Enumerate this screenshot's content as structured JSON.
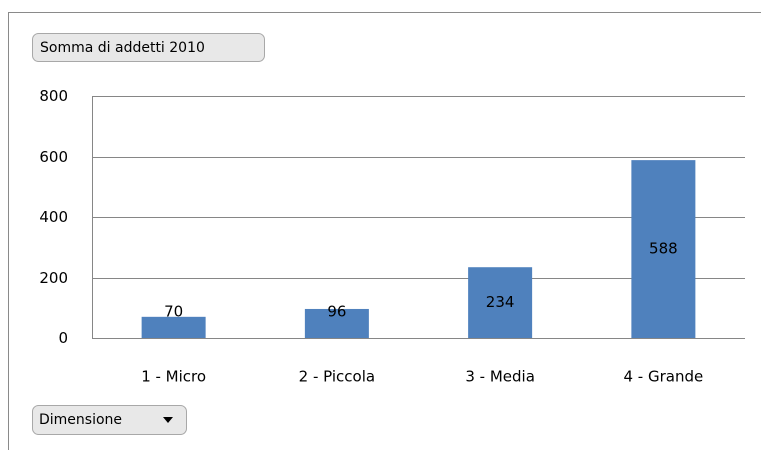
{
  "chart_data": {
    "type": "bar",
    "title": "Somma di addetti 2010",
    "x_label": "Dimensione",
    "categories": [
      "1 - Micro",
      "2 - Piccola",
      "3 - Media",
      "4 - Grande"
    ],
    "values": [
      70,
      96,
      234,
      588
    ],
    "color": "#4f81bd",
    "ylim": [
      0,
      800
    ],
    "yticks": [
      0,
      200,
      400,
      600,
      800
    ],
    "grid": true
  }
}
